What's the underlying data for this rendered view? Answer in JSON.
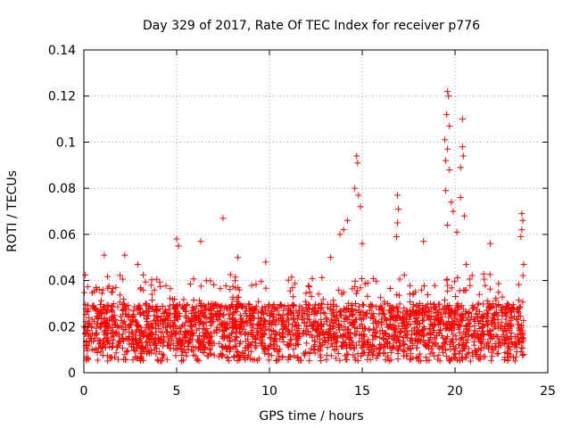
{
  "chart_data": {
    "type": "scatter",
    "title": "Day 329 of 2017, Rate Of TEC Index for receiver p776",
    "xlabel": "GPS time / hours",
    "ylabel": "ROTI / TECUs",
    "xlim": [
      0,
      25
    ],
    "ylim": [
      0,
      0.14
    ],
    "xticks": [
      0,
      5,
      10,
      15,
      20,
      25
    ],
    "yticks": [
      0,
      0.02,
      0.04,
      0.06,
      0.08,
      0.1,
      0.12,
      0.14
    ],
    "xtick_labels": [
      "0",
      "5",
      "10",
      "15",
      "20",
      "25"
    ],
    "ytick_labels": [
      "0",
      "0.02",
      "0.04",
      "0.06",
      "0.08",
      "0.1",
      "0.12",
      "0.14"
    ],
    "grid": true,
    "marker": "+",
    "series_color": "#ff0000",
    "data_range_hours": [
      0,
      23.7
    ],
    "baseline": {
      "min": 0.005,
      "typical_low": 0.01,
      "typical_high": 0.03
    },
    "notable_points": [
      {
        "x": 1.1,
        "y": 0.051
      },
      {
        "x": 2.2,
        "y": 0.051
      },
      {
        "x": 2.9,
        "y": 0.047
      },
      {
        "x": 5.0,
        "y": 0.058
      },
      {
        "x": 5.1,
        "y": 0.055
      },
      {
        "x": 6.3,
        "y": 0.057
      },
      {
        "x": 7.5,
        "y": 0.067
      },
      {
        "x": 8.3,
        "y": 0.05
      },
      {
        "x": 9.8,
        "y": 0.048
      },
      {
        "x": 13.3,
        "y": 0.05
      },
      {
        "x": 13.8,
        "y": 0.06
      },
      {
        "x": 14.0,
        "y": 0.062
      },
      {
        "x": 14.2,
        "y": 0.066
      },
      {
        "x": 14.6,
        "y": 0.08
      },
      {
        "x": 14.7,
        "y": 0.094
      },
      {
        "x": 14.75,
        "y": 0.091
      },
      {
        "x": 14.8,
        "y": 0.077
      },
      {
        "x": 14.9,
        "y": 0.072
      },
      {
        "x": 15.0,
        "y": 0.056
      },
      {
        "x": 16.9,
        "y": 0.077
      },
      {
        "x": 16.95,
        "y": 0.071
      },
      {
        "x": 16.9,
        "y": 0.065
      },
      {
        "x": 16.85,
        "y": 0.059
      },
      {
        "x": 18.3,
        "y": 0.057
      },
      {
        "x": 19.5,
        "y": 0.092
      },
      {
        "x": 19.6,
        "y": 0.122
      },
      {
        "x": 19.65,
        "y": 0.12
      },
      {
        "x": 19.55,
        "y": 0.112
      },
      {
        "x": 19.7,
        "y": 0.107
      },
      {
        "x": 19.45,
        "y": 0.101
      },
      {
        "x": 19.6,
        "y": 0.097
      },
      {
        "x": 19.7,
        "y": 0.088
      },
      {
        "x": 19.5,
        "y": 0.079
      },
      {
        "x": 19.8,
        "y": 0.074
      },
      {
        "x": 19.9,
        "y": 0.07
      },
      {
        "x": 19.6,
        "y": 0.064
      },
      {
        "x": 20.4,
        "y": 0.11
      },
      {
        "x": 20.4,
        "y": 0.098
      },
      {
        "x": 20.45,
        "y": 0.094
      },
      {
        "x": 20.3,
        "y": 0.089
      },
      {
        "x": 20.3,
        "y": 0.076
      },
      {
        "x": 20.5,
        "y": 0.068
      },
      {
        "x": 20.1,
        "y": 0.061
      },
      {
        "x": 20.6,
        "y": 0.047
      },
      {
        "x": 21.9,
        "y": 0.056
      },
      {
        "x": 23.6,
        "y": 0.069
      },
      {
        "x": 23.65,
        "y": 0.066
      },
      {
        "x": 23.6,
        "y": 0.062
      },
      {
        "x": 23.55,
        "y": 0.059
      },
      {
        "x": 23.7,
        "y": 0.047
      }
    ]
  }
}
